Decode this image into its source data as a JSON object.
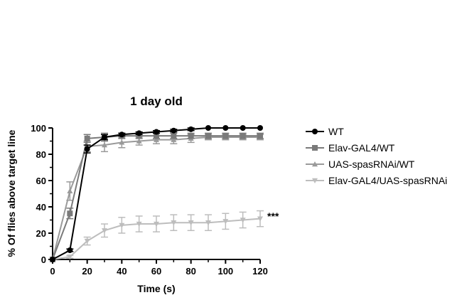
{
  "chart_data": {
    "type": "line",
    "title": "1 day old",
    "xlabel": "Time (s)",
    "ylabel": "% Of flies above target line",
    "xlim": [
      0,
      120
    ],
    "ylim": [
      0,
      100
    ],
    "xticks": [
      0,
      20,
      40,
      60,
      80,
      100,
      120
    ],
    "yticks": [
      0,
      20,
      40,
      60,
      80,
      100
    ],
    "x": [
      0,
      10,
      20,
      30,
      40,
      50,
      60,
      70,
      80,
      90,
      100,
      110,
      120
    ],
    "legend_position": "right",
    "annotation": "***",
    "series": [
      {
        "name": "WT",
        "marker": "circle",
        "color": "#000000",
        "values": [
          0,
          7,
          84,
          93,
          95,
          96,
          97,
          98,
          99,
          100,
          100,
          100,
          100
        ],
        "errors": [
          0,
          1,
          3,
          2,
          1,
          1,
          1,
          1,
          1,
          0,
          0,
          0,
          0
        ]
      },
      {
        "name": "Elav-GAL4/WT",
        "marker": "square",
        "color": "#7a7a7a",
        "values": [
          0,
          35,
          92,
          93,
          94,
          94,
          94,
          94,
          94,
          94,
          94,
          94,
          94
        ],
        "errors": [
          0,
          4,
          3,
          3,
          2,
          2,
          2,
          2,
          2,
          2,
          2,
          2,
          2
        ]
      },
      {
        "name": "UAS-spasRNAi/WT",
        "marker": "triangle-up",
        "color": "#9a9a9a",
        "values": [
          0,
          52,
          86,
          87,
          89,
          90,
          91,
          91,
          92,
          93,
          93,
          93,
          93
        ],
        "errors": [
          0,
          7,
          4,
          5,
          4,
          3,
          3,
          3,
          3,
          2,
          2,
          2,
          2
        ]
      },
      {
        "name": "Elav-GAL4/UAS-spasRNAi",
        "marker": "triangle-down",
        "color": "#bdbdbd",
        "values": [
          0,
          2,
          14,
          22,
          26,
          27,
          27,
          28,
          28,
          28,
          29,
          30,
          31
        ],
        "errors": [
          0,
          1,
          3,
          5,
          6,
          6,
          6,
          6,
          6,
          6,
          6,
          6,
          6
        ]
      }
    ]
  }
}
